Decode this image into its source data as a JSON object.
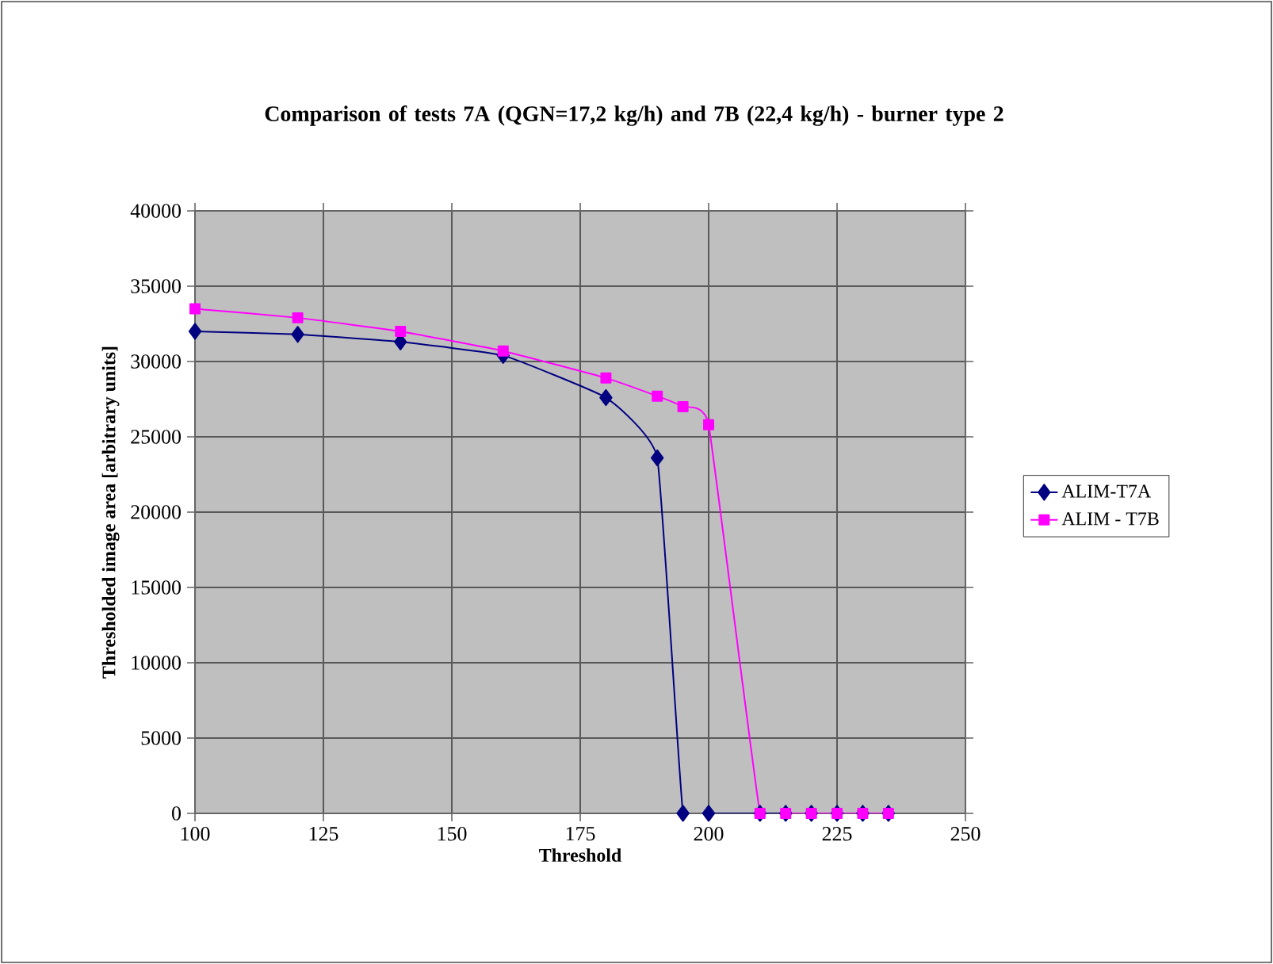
{
  "chart_data": {
    "type": "line",
    "title": "Comparison of tests 7A (QGN=17,2 kg/h) and 7B (22,4 kg/h) - burner type 2",
    "xlabel": "Threshold",
    "ylabel": "Thresholded image area [arbitrary units]",
    "xlim": [
      100,
      250
    ],
    "xticks": [
      100,
      125,
      150,
      175,
      200,
      225,
      250
    ],
    "ylim": [
      0,
      40000
    ],
    "yticks": [
      0,
      5000,
      10000,
      15000,
      20000,
      25000,
      30000,
      35000,
      40000
    ],
    "grid": true,
    "legend": "right",
    "series": [
      {
        "name": "ALIM-T7A",
        "color": "#000080",
        "marker": "diamond",
        "x": [
          100,
          120,
          140,
          160,
          180,
          190,
          195,
          200,
          210,
          215,
          220,
          225,
          230,
          235
        ],
        "values": [
          32000,
          31800,
          31300,
          30400,
          27600,
          23600,
          0,
          0,
          0,
          0,
          0,
          0,
          0,
          0
        ]
      },
      {
        "name": "ALIM - T7B",
        "color": "#ff00ff",
        "marker": "square",
        "x": [
          100,
          120,
          140,
          160,
          180,
          190,
          195,
          200,
          210,
          215,
          220,
          225,
          230,
          235
        ],
        "values": [
          33500,
          32900,
          32000,
          30700,
          28900,
          27700,
          27000,
          25800,
          0,
          0,
          0,
          0,
          0,
          0
        ]
      }
    ]
  }
}
